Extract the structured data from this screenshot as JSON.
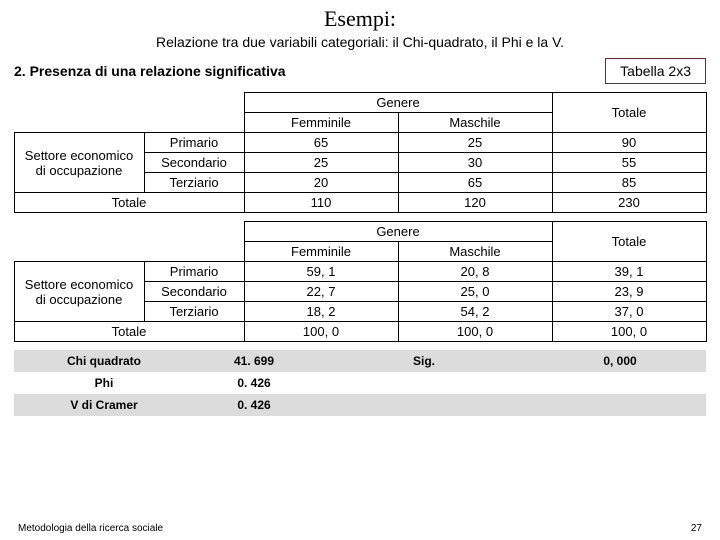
{
  "title": "Esempi:",
  "subtitle": "Relazione tra due variabili categoriali: il Chi-quadrato, il Phi e la V.",
  "section_label": "2. Presenza di una relazione significativa",
  "tabella_label": "Tabella 2x3",
  "header": {
    "genere": "Genere",
    "femminile": "Femminile",
    "maschile": "Maschile",
    "totale": "Totale",
    "settore": "Settore economico di occupazione",
    "primario": "Primario",
    "secondario": "Secondario",
    "terziario": "Terziario",
    "totale_row": "Totale"
  },
  "table1": {
    "r1": {
      "f": "65",
      "m": "25",
      "t": "90"
    },
    "r2": {
      "f": "25",
      "m": "30",
      "t": "55"
    },
    "r3": {
      "f": "20",
      "m": "65",
      "t": "85"
    },
    "tot": {
      "f": "110",
      "m": "120",
      "t": "230"
    }
  },
  "table2": {
    "r1": {
      "f": "59, 1",
      "m": "20, 8",
      "t": "39, 1"
    },
    "r2": {
      "f": "22, 7",
      "m": "25, 0",
      "t": "23, 9"
    },
    "r3": {
      "f": "18, 2",
      "m": "54, 2",
      "t": "37, 0"
    },
    "tot": {
      "f": "100, 0",
      "m": "100, 0",
      "t": "100, 0"
    }
  },
  "stats": {
    "chi_label": "Chi quadrato",
    "chi_val": "41. 699",
    "sig_label": "Sig.",
    "sig_val": "0, 000",
    "phi_label": "Phi",
    "phi_val": "0. 426",
    "v_label": "V di Cramer",
    "v_val": "0. 426"
  },
  "footer": {
    "left": "Metodologia della ricerca sociale",
    "page": "27"
  }
}
